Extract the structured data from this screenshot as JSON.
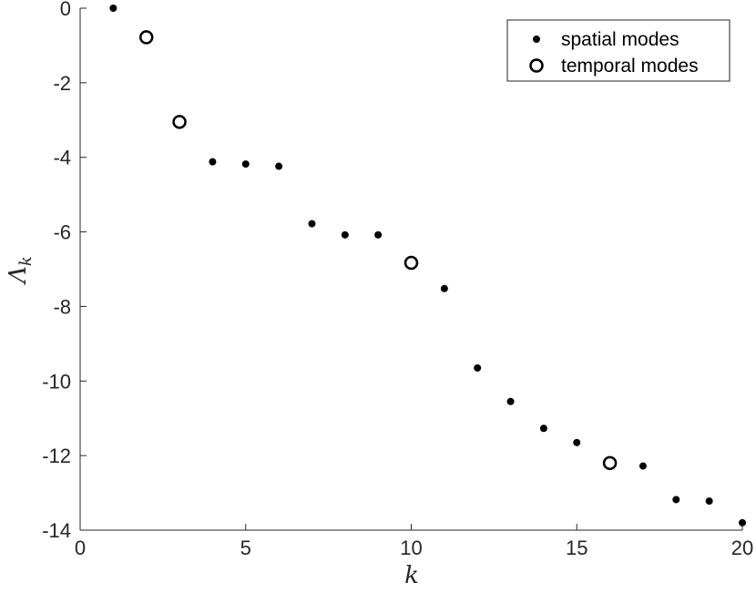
{
  "chart_data": {
    "type": "scatter",
    "title": "",
    "xlabel": "k",
    "ylabel": "Λ",
    "ylabel_subscript": "k",
    "xlim": [
      0,
      20
    ],
    "ylim": [
      -14,
      0
    ],
    "x_ticks": [
      0,
      5,
      10,
      15,
      20
    ],
    "y_ticks": [
      0,
      -2,
      -4,
      -6,
      -8,
      -10,
      -12,
      -14
    ],
    "x_tick_labels": [
      "0",
      "5",
      "10",
      "15",
      "20"
    ],
    "y_tick_labels": [
      "0",
      "-2",
      "-4",
      "-6",
      "-8",
      "-10",
      "-12",
      "-14"
    ],
    "grid": false,
    "legend_position": "top-right",
    "series": [
      {
        "name": "spatial modes",
        "marker": "filled-dot",
        "color": "#000000",
        "points": [
          {
            "x": 1,
            "y": 0.0
          },
          {
            "x": 4,
            "y": -4.12
          },
          {
            "x": 5,
            "y": -4.18
          },
          {
            "x": 6,
            "y": -4.24
          },
          {
            "x": 7,
            "y": -5.78
          },
          {
            "x": 8,
            "y": -6.08
          },
          {
            "x": 9,
            "y": -6.08
          },
          {
            "x": 11,
            "y": -7.52
          },
          {
            "x": 12,
            "y": -9.65
          },
          {
            "x": 13,
            "y": -10.55
          },
          {
            "x": 14,
            "y": -11.27
          },
          {
            "x": 15,
            "y": -11.65
          },
          {
            "x": 17,
            "y": -12.28
          },
          {
            "x": 18,
            "y": -13.18
          },
          {
            "x": 19,
            "y": -13.22
          },
          {
            "x": 20,
            "y": -13.8
          }
        ]
      },
      {
        "name": "temporal modes",
        "marker": "open-circle",
        "color": "#000000",
        "points": [
          {
            "x": 2,
            "y": -0.78
          },
          {
            "x": 3,
            "y": -3.05
          },
          {
            "x": 10,
            "y": -6.83
          },
          {
            "x": 16,
            "y": -12.2
          }
        ]
      }
    ]
  }
}
